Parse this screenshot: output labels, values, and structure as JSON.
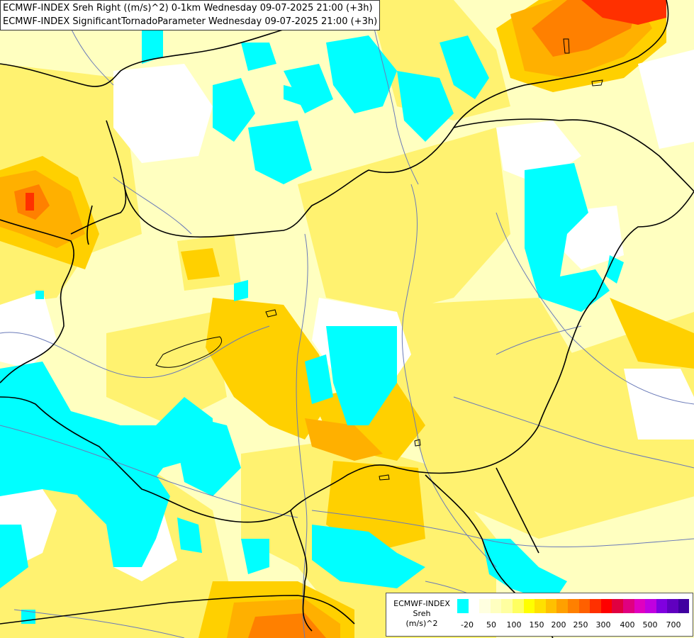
{
  "header": {
    "line1": "ECMWF-INDEX Sreh Right ((m/s)^2) 0-1km Wednesday 09-07-2025 21:00 (+3h)",
    "line2": "ECMWF-INDEX SignificantTornadoParameter Wednesday 09-07-2025 21:00 (+3h)"
  },
  "legend": {
    "source": "ECMWF-INDEX",
    "parameter": "Sreh",
    "unit": "(m/s)^2",
    "ticks": [
      "-20",
      "50",
      "100",
      "150",
      "200",
      "250",
      "300",
      "400",
      "500",
      "700"
    ],
    "colors": [
      "#00ffff",
      "#ffffff",
      "#ffffe0",
      "#ffffc0",
      "#ffffa0",
      "#ffff60",
      "#ffff00",
      "#ffe000",
      "#ffc000",
      "#ffa000",
      "#ff8000",
      "#ff6000",
      "#ff3000",
      "#ff0000",
      "#e00040",
      "#e00080",
      "#e000c0",
      "#c000e0",
      "#8000e0",
      "#6000c0",
      "#4000a0"
    ]
  },
  "colors": {
    "cyan": "#00ffff",
    "pale": "#ffffc0",
    "yellow": "#ffe84a",
    "gold": "#ffd000",
    "orange": "#ffb000",
    "darkorange": "#ff8000",
    "red": "#ff2000"
  }
}
